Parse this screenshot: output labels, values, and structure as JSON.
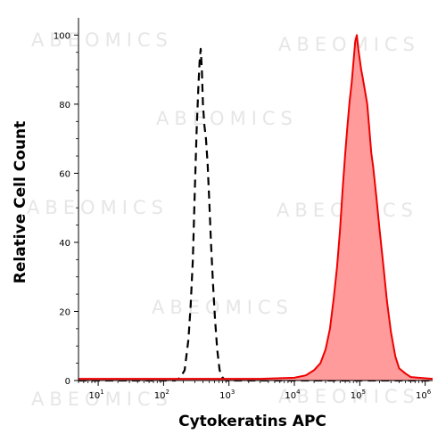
{
  "watermark": "ABEOMICS",
  "chart_data": {
    "type": "area",
    "title": "",
    "xlabel": "Cytokeratins APC",
    "ylabel": "Relative Cell Count",
    "x_scale": "log",
    "xlim": [
      5,
      1300000
    ],
    "ylim": [
      0,
      105
    ],
    "x_ticks": [
      {
        "value": 10,
        "base": "10",
        "exp": "1"
      },
      {
        "value": 100,
        "base": "10",
        "exp": "2"
      },
      {
        "value": 1000,
        "base": "10",
        "exp": "3"
      },
      {
        "value": 10000,
        "base": "10",
        "exp": "4"
      },
      {
        "value": 100000,
        "base": "10",
        "exp": "5"
      },
      {
        "value": 1000000,
        "base": "10",
        "exp": "6"
      }
    ],
    "y_ticks": [
      0,
      20,
      40,
      60,
      80,
      100
    ],
    "grid": false,
    "legend": "none",
    "series": [
      {
        "style": "dashed",
        "color": "#000000",
        "fill": false,
        "points": [
          [
            5,
            0
          ],
          [
            150,
            0
          ],
          [
            180,
            0.8
          ],
          [
            210,
            3
          ],
          [
            240,
            12
          ],
          [
            260,
            22
          ],
          [
            280,
            35
          ],
          [
            300,
            55
          ],
          [
            320,
            72
          ],
          [
            340,
            85
          ],
          [
            355,
            92
          ],
          [
            370,
            96
          ],
          [
            385,
            90
          ],
          [
            400,
            80
          ],
          [
            420,
            74
          ],
          [
            445,
            70
          ],
          [
            470,
            63
          ],
          [
            500,
            52
          ],
          [
            530,
            40
          ],
          [
            570,
            28
          ],
          [
            610,
            18
          ],
          [
            660,
            9
          ],
          [
            720,
            3
          ],
          [
            800,
            0.8
          ],
          [
            900,
            0
          ],
          [
            1300000,
            0
          ]
        ]
      },
      {
        "style": "solid",
        "color": "#ee0000",
        "fill": true,
        "fill_color": "#ff9b9b",
        "points": [
          [
            5,
            0.5
          ],
          [
            3000,
            0.5
          ],
          [
            10000,
            0.8
          ],
          [
            15000,
            1.5
          ],
          [
            20000,
            3
          ],
          [
            25000,
            5
          ],
          [
            30000,
            9
          ],
          [
            35000,
            15
          ],
          [
            40000,
            24
          ],
          [
            45000,
            33
          ],
          [
            50000,
            44
          ],
          [
            55000,
            56
          ],
          [
            60000,
            66
          ],
          [
            65000,
            74
          ],
          [
            70000,
            81
          ],
          [
            75000,
            86
          ],
          [
            80000,
            92
          ],
          [
            85000,
            98
          ],
          [
            90000,
            100
          ],
          [
            95000,
            96
          ],
          [
            100000,
            93
          ],
          [
            105000,
            90
          ],
          [
            110000,
            88
          ],
          [
            120000,
            84
          ],
          [
            130000,
            80
          ],
          [
            140000,
            73
          ],
          [
            150000,
            66
          ],
          [
            160000,
            62
          ],
          [
            180000,
            53
          ],
          [
            200000,
            44
          ],
          [
            230000,
            33
          ],
          [
            260000,
            23
          ],
          [
            300000,
            14
          ],
          [
            350000,
            7
          ],
          [
            400000,
            3.5
          ],
          [
            500000,
            2
          ],
          [
            600000,
            1
          ],
          [
            800000,
            0.8
          ],
          [
            1300000,
            0.5
          ]
        ]
      }
    ]
  }
}
